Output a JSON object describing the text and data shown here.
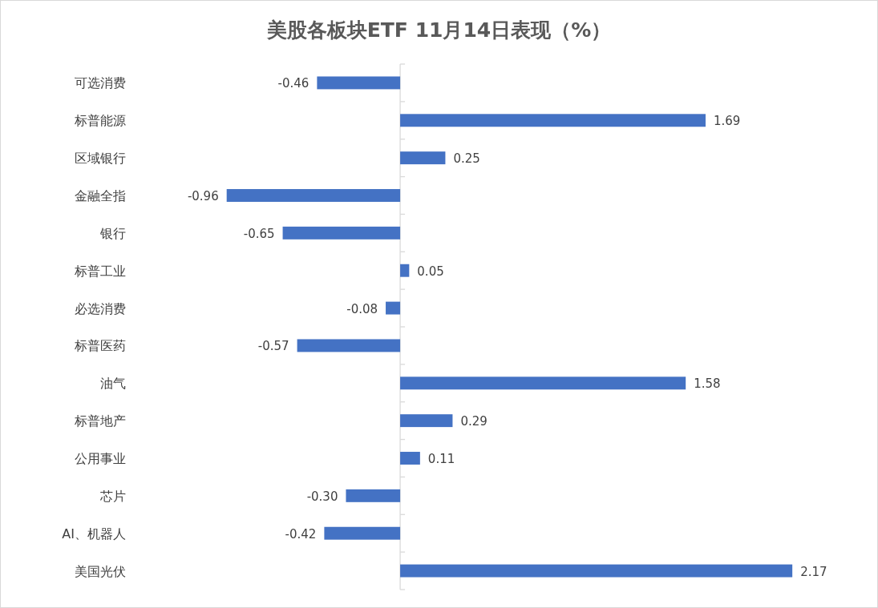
{
  "chart_data": {
    "type": "bar",
    "orientation": "horizontal",
    "title": "美股各板块ETF  11月14日表现（%）",
    "categories": [
      "可选消费",
      "标普能源",
      "区域银行",
      "金融全指",
      "银行",
      "标普工业",
      "必选消费",
      "标普医药",
      "油气",
      "标普地产",
      "公用事业",
      "芯片",
      "AI、机器人",
      "美国光伏"
    ],
    "values": [
      -0.46,
      1.69,
      0.25,
      -0.96,
      -0.65,
      0.05,
      -0.08,
      -0.57,
      1.58,
      0.29,
      0.11,
      -0.3,
      -0.42,
      2.17
    ],
    "value_labels": [
      "-0.46",
      "1.69",
      "0.25",
      "-0.96",
      "-0.65",
      "0.05",
      "-0.08",
      "-0.57",
      "1.58",
      "0.29",
      "0.11",
      "-0.30",
      "-0.42",
      "2.17"
    ],
    "color": "#4472c4"
  }
}
